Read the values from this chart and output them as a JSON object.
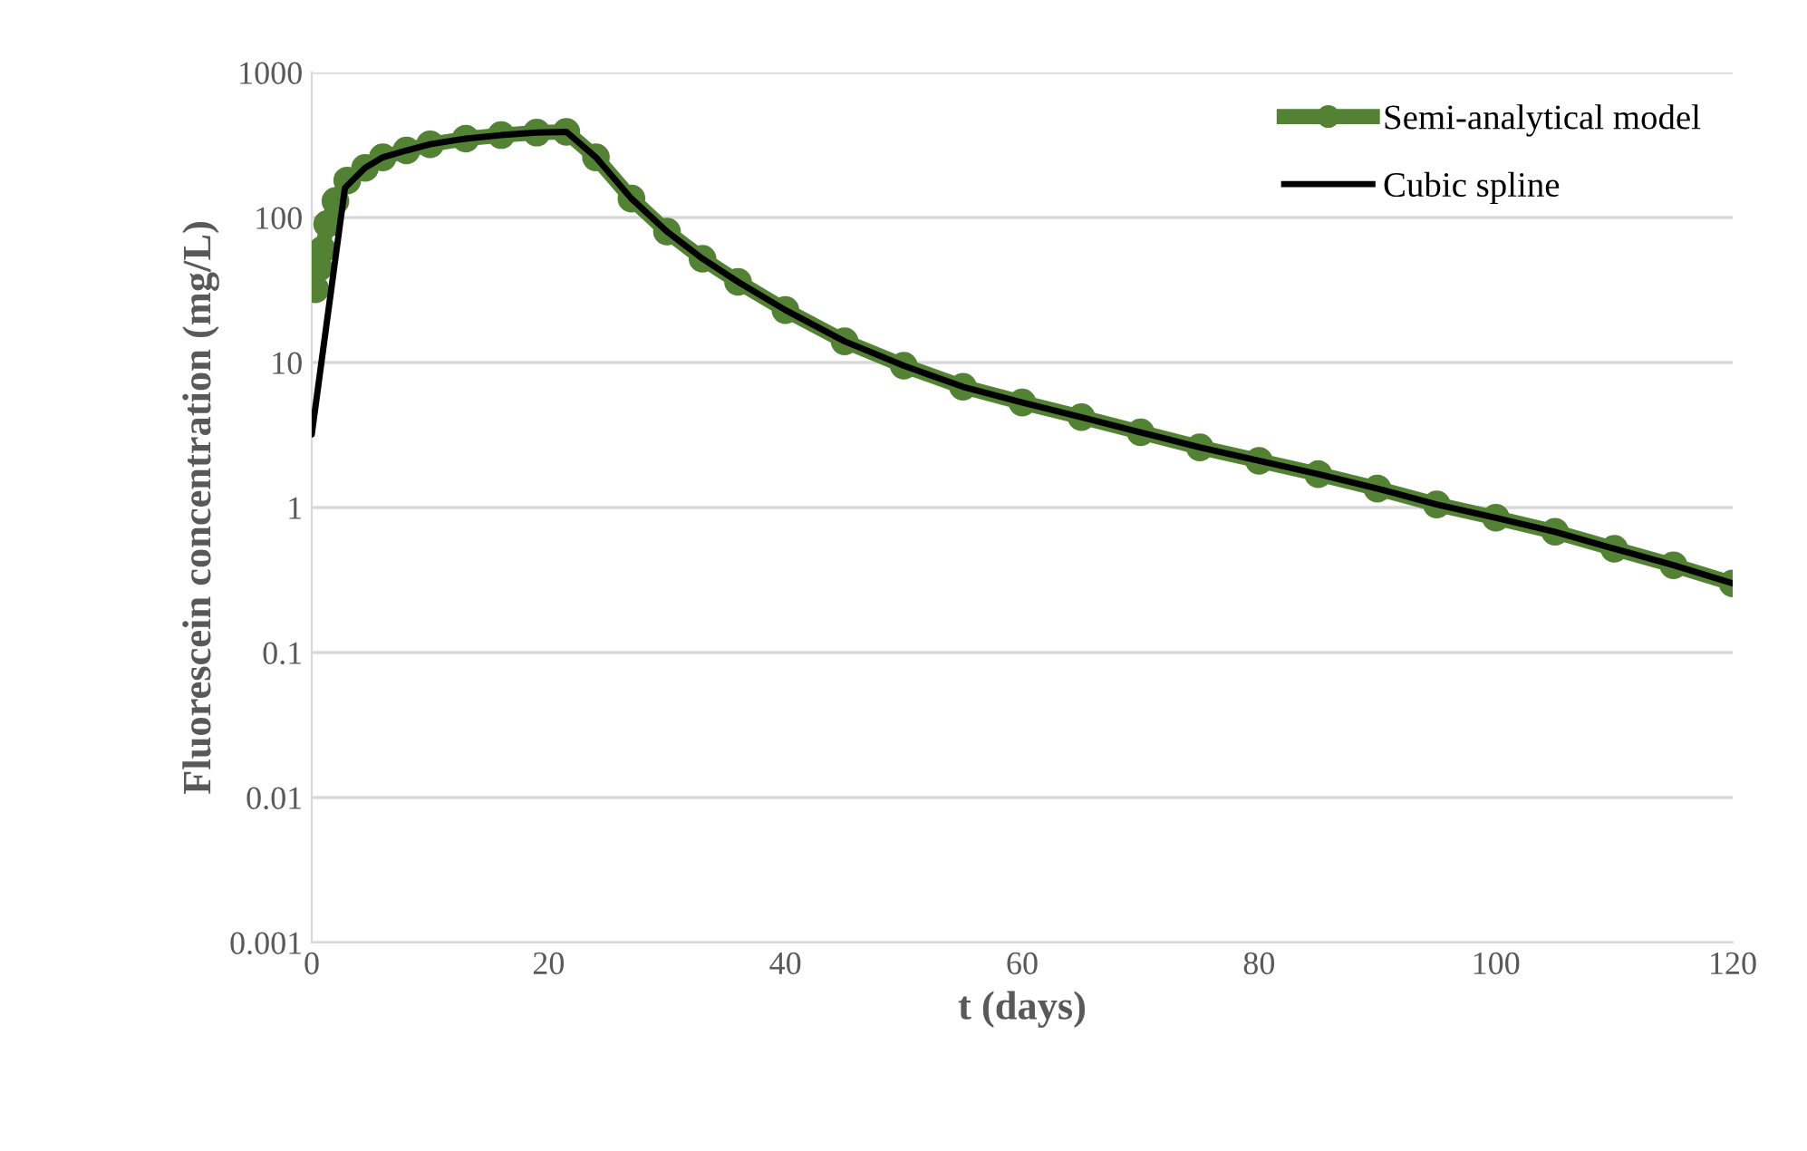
{
  "chart_data": {
    "type": "line",
    "xlabel": "t (days)",
    "ylabel": "Fluorescein concentration (mg/L)",
    "log": "y",
    "grid": "y",
    "legend": "top right",
    "xlim": [
      0,
      120
    ],
    "xticks": [
      0,
      20,
      40,
      60,
      80,
      100,
      120
    ],
    "ylim": [
      0.001,
      1000
    ],
    "yticks": [
      0.001,
      0.01,
      0.1,
      1,
      10,
      100,
      1000
    ],
    "series": [
      {
        "name": "Semi-analytical model",
        "color": "#548235",
        "marker": "circle",
        "line_style": "solid",
        "x": [
          0.3,
          0.6,
          0.9,
          1.3,
          2,
          3,
          4.5,
          6,
          8,
          10,
          13,
          16,
          19,
          21.5,
          24,
          27,
          30,
          33,
          36,
          40,
          45,
          50,
          55,
          60,
          65,
          70,
          75,
          80,
          85,
          90,
          95,
          100,
          105,
          110,
          115,
          120
        ],
        "values": [
          32,
          45,
          60,
          90,
          130,
          180,
          220,
          260,
          290,
          320,
          350,
          370,
          385,
          390,
          260,
          135,
          80,
          52,
          36,
          23,
          14,
          9.5,
          6.8,
          5.3,
          4.2,
          3.3,
          2.6,
          2.1,
          1.7,
          1.35,
          1.05,
          0.85,
          0.68,
          0.52,
          0.4,
          0.3
        ]
      },
      {
        "name": "Cubic spline",
        "color": "#000000",
        "marker": "none",
        "line_style": "solid",
        "x": [
          0,
          2.8,
          4.5,
          6,
          8,
          10,
          13,
          16,
          19,
          21.5,
          24,
          27,
          30,
          33,
          36,
          40,
          45,
          50,
          55,
          60,
          65,
          70,
          75,
          80,
          85,
          90,
          95,
          100,
          105,
          110,
          115,
          120
        ],
        "values": [
          3.2,
          160,
          220,
          260,
          290,
          320,
          350,
          370,
          385,
          390,
          260,
          135,
          80,
          52,
          36,
          23,
          14,
          9.5,
          6.8,
          5.3,
          4.2,
          3.3,
          2.6,
          2.1,
          1.7,
          1.35,
          1.05,
          0.85,
          0.68,
          0.52,
          0.4,
          0.3
        ]
      }
    ]
  }
}
